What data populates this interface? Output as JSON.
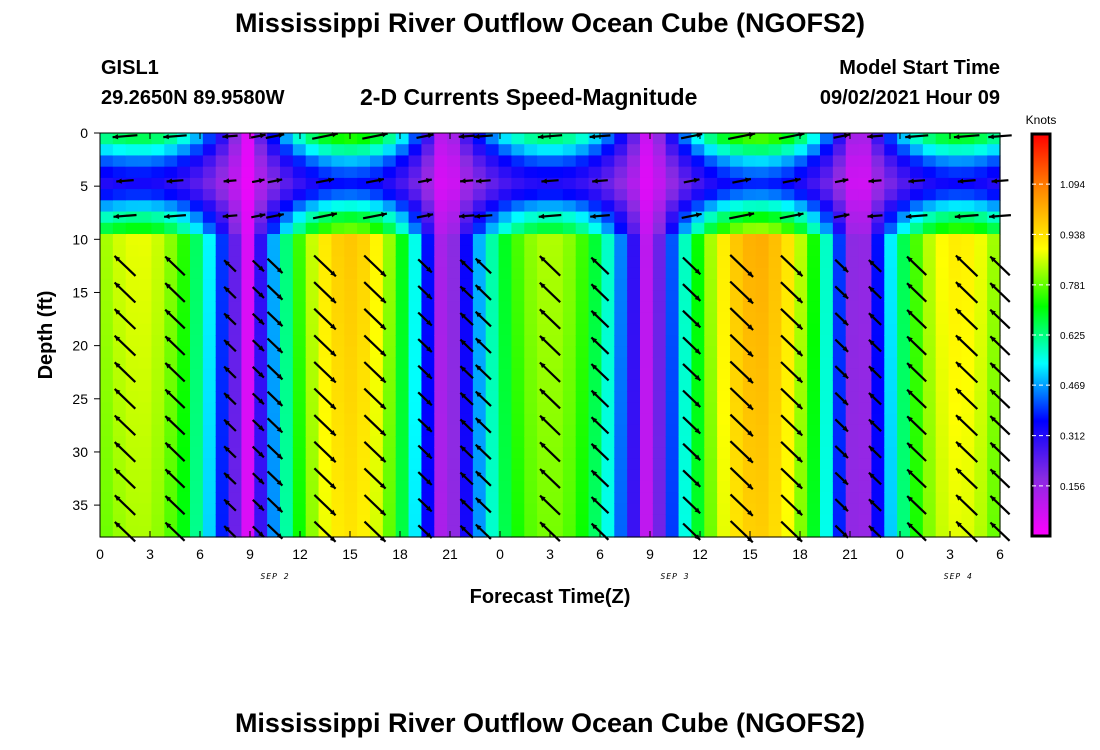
{
  "header": {
    "title": "Mississippi River Outflow Ocean Cube (NGOFS2)",
    "station_id": "GISL1",
    "station_coords": "29.2650N  89.9580W",
    "subtitle": "2-D Currents Speed-Magnitude",
    "model_start_label": "Model Start Time",
    "model_start_value": "09/02/2021 Hour 09"
  },
  "footer": {
    "title": "Mississippi River Outflow Ocean Cube (NGOFS2)"
  },
  "chart_data": {
    "type": "heatmap",
    "title": "2-D Currents Speed-Magnitude",
    "xlabel": "Forecast Time(Z)",
    "ylabel": "Depth (ft)",
    "x_range_hours": [
      0,
      54
    ],
    "x_tick_labels": [
      "0",
      "3",
      "6",
      "9",
      "12",
      "15",
      "18",
      "21",
      "0",
      "3",
      "6",
      "9",
      "12",
      "15",
      "18",
      "21",
      "0",
      "3",
      "6"
    ],
    "date_labels": [
      {
        "label": "SEP 2",
        "hour": 10.5
      },
      {
        "label": "SEP 3",
        "hour": 34.5
      },
      {
        "label": "SEP 4",
        "hour": 51.5
      }
    ],
    "y_range_ft": [
      0,
      38
    ],
    "y_ticks": [
      0,
      5,
      10,
      15,
      20,
      25,
      30,
      35
    ],
    "y_inverted": true,
    "colorbar": {
      "unit": "Knots",
      "min": 0,
      "max": 1.25,
      "tick_values": [
        1.094,
        0.938,
        0.781,
        0.625,
        0.469,
        0.312,
        0.156
      ],
      "tick_labels": [
        "1.094",
        "0.938",
        "0.781",
        "0.625",
        "0.469",
        "0.312",
        "0.156"
      ],
      "colors": [
        "#ff00ff",
        "#8a2be2",
        "#0000ff",
        "#00ffff",
        "#00ff00",
        "#ffff00",
        "#ff8c00",
        "#ff0000"
      ]
    },
    "speed_field": {
      "layer_depths_ft": [
        0,
        3,
        5,
        6,
        8,
        9,
        10,
        38
      ],
      "layer_peak_scale": [
        0.8,
        0.45,
        0.35,
        0.45,
        0.7,
        0.8,
        1.0,
        0.95
      ],
      "flood_peaks": [
        {
          "center_hour": 2.4,
          "peak_knots": 0.86
        },
        {
          "center_hour": 15.0,
          "peak_knots": 0.96
        },
        {
          "center_hour": 27.0,
          "peak_knots": 0.82
        },
        {
          "center_hour": 39.5,
          "peak_knots": 1.0
        },
        {
          "center_hour": 51.5,
          "peak_knots": 0.9
        }
      ],
      "slack_hours": [
        8.8,
        20.7,
        33.0,
        45.5
      ]
    },
    "arrow_columns_hours": [
      1.5,
      4.5,
      7.8,
      9.5,
      10.5,
      13.5,
      16.5,
      19.5,
      22.0,
      23.0,
      27.0,
      30.0,
      35.5,
      38.5,
      41.5,
      44.5,
      46.5,
      49.0,
      52.0,
      54.0
    ],
    "arrow_rows_ft": [
      0.3,
      4.5,
      7.8,
      12.5,
      15.0,
      17.5,
      20.0,
      22.5,
      25.0,
      27.5,
      30.0,
      32.5,
      35.0,
      37.5
    ],
    "arrow_color": "#000000"
  }
}
